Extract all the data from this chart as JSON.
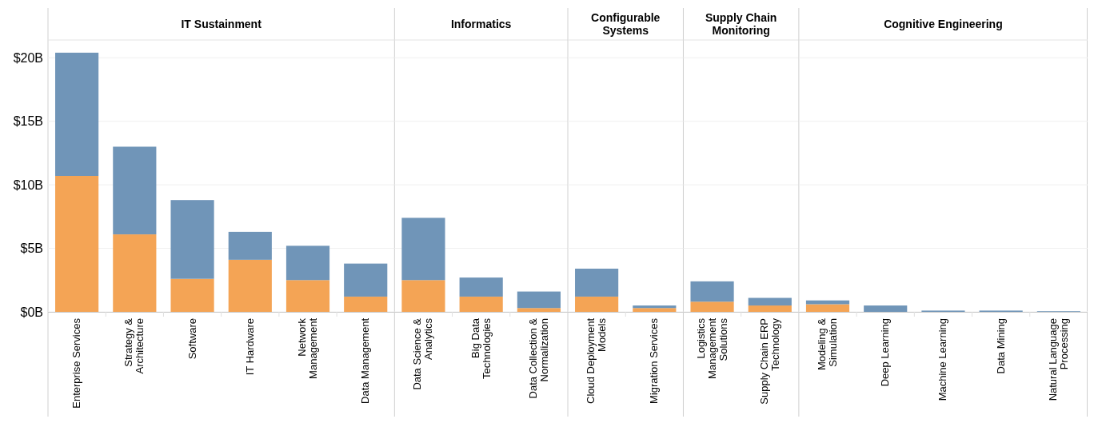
{
  "chart_data": [
    {
      "type": "bar",
      "title": "IT Sustainment",
      "stacked": true,
      "grid": "y",
      "categories": [
        "Enterprise Services",
        "Strategy & Architecture",
        "Software",
        "IT Hardware",
        "Network Management",
        "Data Management"
      ],
      "ylim": [
        0,
        21.4
      ],
      "yticks": [
        {
          "value": 0,
          "label": "$0B"
        },
        {
          "value": 5,
          "label": "$5B"
        },
        {
          "value": 10,
          "label": "$10B"
        },
        {
          "value": 15,
          "label": "$15B"
        },
        {
          "value": 20,
          "label": "$20B"
        }
      ],
      "series": [
        {
          "color": "#f4a455",
          "values": [
            10.7,
            6.1,
            2.6,
            4.1,
            2.5,
            1.2
          ]
        },
        {
          "color": "#7095b8",
          "values": [
            9.7,
            6.9,
            6.2,
            2.2,
            2.7,
            2.6
          ]
        }
      ]
    },
    {
      "type": "bar",
      "title": "Informatics",
      "stacked": true,
      "grid": "y",
      "tick_labels": "x",
      "categories": [
        "Data Science & Analytics",
        "Big Data Technologies",
        "Data Collection & Normalization"
      ],
      "ylim": [
        0,
        21.4
      ],
      "yticks": [
        0,
        5,
        10,
        15,
        20
      ],
      "series": [
        {
          "color": "#f4a455",
          "values": [
            2.5,
            1.2,
            0.3
          ]
        },
        {
          "color": "#7095b8",
          "values": [
            4.9,
            1.5,
            1.3
          ]
        }
      ]
    },
    {
      "type": "bar",
      "title": "Configurable Systems",
      "stacked": true,
      "grid": "y",
      "tick_labels": "x",
      "categories": [
        "Cloud Deployment Models",
        "Migration Services"
      ],
      "ylim": [
        0,
        21.4
      ],
      "yticks": [
        0,
        5,
        10,
        15,
        20
      ],
      "series": [
        {
          "color": "#f4a455",
          "values": [
            1.2,
            0.3
          ]
        },
        {
          "color": "#7095b8",
          "values": [
            2.2,
            0.2
          ]
        }
      ]
    },
    {
      "type": "bar",
      "title": "Supply Chain Monitoring",
      "stacked": true,
      "grid": "y",
      "tick_labels": "x",
      "categories": [
        "Logistics Management Solutions",
        "Supply Chain ERP Technology"
      ],
      "ylim": [
        0,
        21.4
      ],
      "yticks": [
        0,
        5,
        10,
        15,
        20
      ],
      "series": [
        {
          "color": "#f4a455",
          "values": [
            0.8,
            0.5
          ]
        },
        {
          "color": "#7095b8",
          "values": [
            1.6,
            0.6
          ]
        }
      ]
    },
    {
      "type": "bar",
      "title": "Cognitive Engineering",
      "stacked": true,
      "grid": "y",
      "tick_labels": "x",
      "categories": [
        "Modeling & Simulation",
        "Deep Learning",
        "Machine Learning",
        "Data Mining",
        "Natural Language Processing"
      ],
      "ylim": [
        0,
        21.4
      ],
      "yticks": [
        0,
        5,
        10,
        15,
        20
      ],
      "series": [
        {
          "color": "#f4a455",
          "values": [
            0.6,
            0,
            0,
            0,
            0
          ]
        },
        {
          "color": "#7095b8",
          "values": [
            0.3,
            0.5,
            0.1,
            0.1,
            0.05
          ]
        }
      ]
    }
  ]
}
